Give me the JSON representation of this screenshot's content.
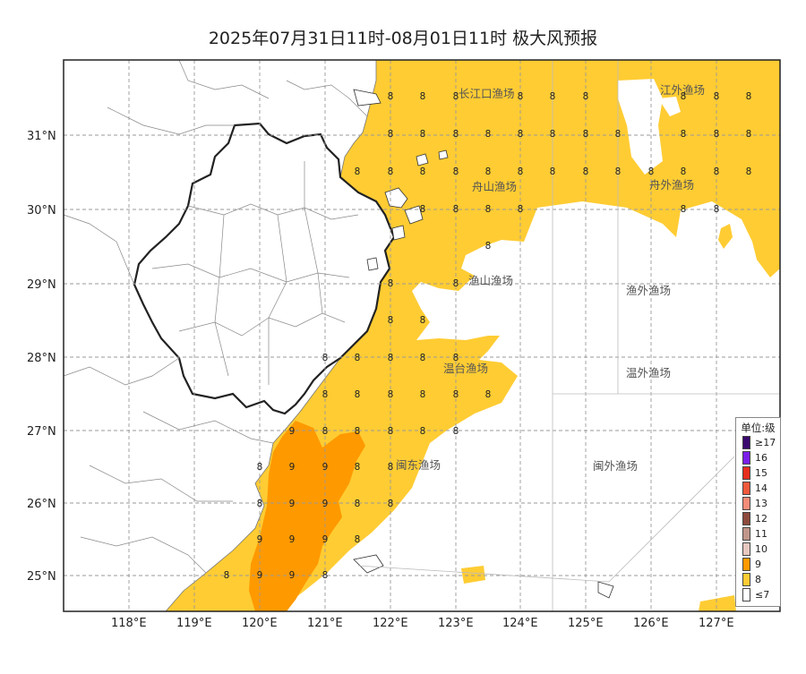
{
  "title": "2025年07月31日11时-08月01日11时 极大风预报",
  "lat_labels": [
    "31°N",
    "30°N",
    "29°N",
    "28°N",
    "27°N",
    "26°N",
    "25°N"
  ],
  "lon_labels": [
    "118°E",
    "119°E",
    "120°E",
    "121°E",
    "122°E",
    "123°E",
    "124°E",
    "125°E",
    "126°E",
    "127°E"
  ],
  "regions": [
    "长江口渔场",
    "江外渔场",
    "舟山渔场",
    "舟外渔场",
    "渔山渔场",
    "渔外渔场",
    "温台渔场",
    "温外渔场",
    "闽东渔场",
    "闽外渔场"
  ],
  "wind_values": {
    "rows": [
      [
        "8",
        "8",
        "8",
        "8",
        "8",
        "8",
        "8",
        "8",
        "8"
      ],
      [
        "8",
        "8",
        "8",
        "8",
        "8",
        "8",
        "8",
        "8",
        "8",
        "8",
        "8"
      ],
      [
        "8",
        "8",
        "8",
        "8",
        "8",
        "8",
        "8",
        "8",
        "8",
        "8",
        "8",
        "8",
        "8"
      ],
      [
        "8",
        "8",
        "8",
        "8",
        "8",
        "8"
      ],
      [
        "8"
      ],
      [
        "8",
        "8"
      ],
      [
        "8",
        "8"
      ],
      [
        "8",
        "8",
        "8",
        "8",
        "8"
      ],
      [
        "8",
        "8",
        "8",
        "8",
        "8",
        "8"
      ],
      [
        "9",
        "8",
        "8",
        "8",
        "8",
        "8"
      ],
      [
        "8",
        "9",
        "9",
        "8",
        "8"
      ],
      [
        "8",
        "9",
        "9",
        "8",
        "8"
      ],
      [
        "9",
        "9",
        "9",
        "8"
      ],
      [
        "8",
        "9",
        "9",
        "8"
      ]
    ]
  },
  "legend": {
    "title": "单位:级",
    "items": [
      {
        "label": "≥17",
        "color": "#3a0a6e"
      },
      {
        "label": "16",
        "color": "#7b1fe8"
      },
      {
        "label": "15",
        "color": "#e62e1e"
      },
      {
        "label": "14",
        "color": "#f05a3c"
      },
      {
        "label": "13",
        "color": "#f58c78"
      },
      {
        "label": "12",
        "color": "#8c4a3c"
      },
      {
        "label": "11",
        "color": "#c0968a"
      },
      {
        "label": "10",
        "color": "#e6c8c0"
      },
      {
        "label": "9",
        "color": "#ff9900"
      },
      {
        "label": "8",
        "color": "#ffcc33"
      },
      {
        "label": "≤7",
        "color": "#ffffff"
      }
    ]
  },
  "colors": {
    "level8": "#ffcc33",
    "level9": "#ff9900",
    "grid": "#9a9a9a",
    "border": "#222222"
  }
}
